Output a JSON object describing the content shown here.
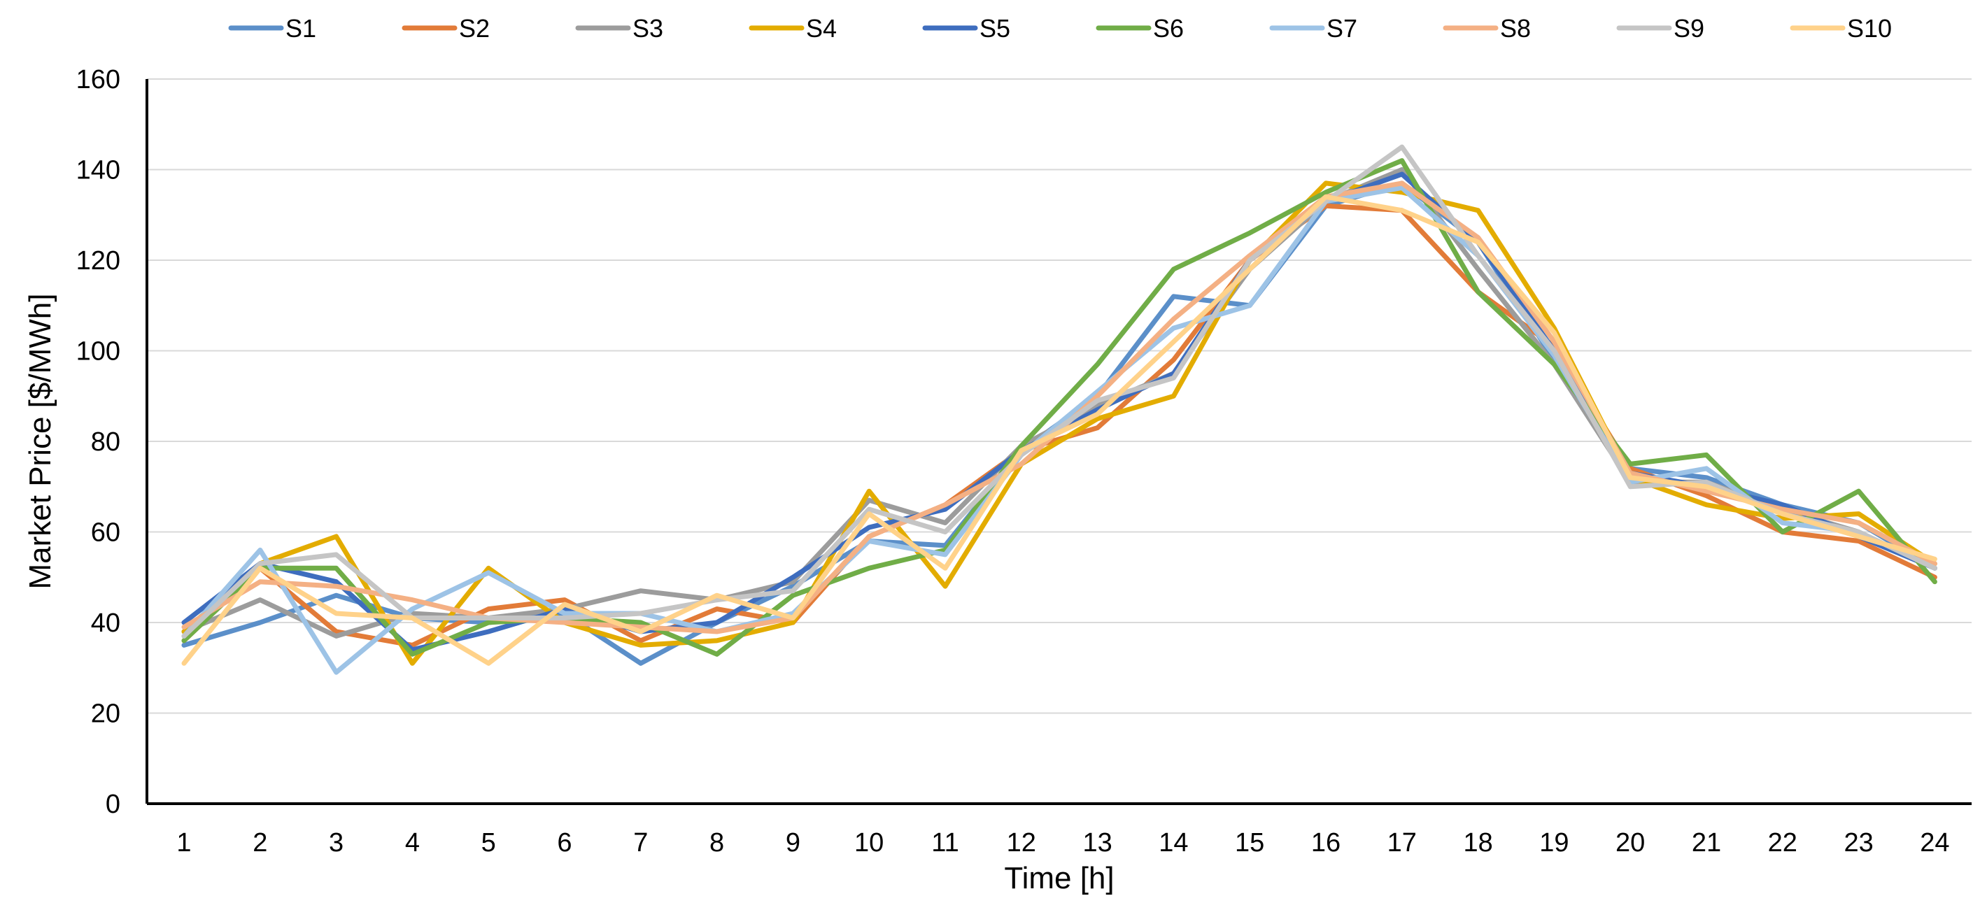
{
  "chart_data": {
    "type": "line",
    "title": "",
    "xlabel": "Time [h]",
    "ylabel": "Market Price [$/MWh]",
    "ylim": [
      0,
      160
    ],
    "yticks": [
      0,
      20,
      40,
      60,
      80,
      100,
      120,
      140,
      160
    ],
    "x": [
      "1",
      "2",
      "3",
      "4",
      "5",
      "6",
      "7",
      "8",
      "9",
      "10",
      "11",
      "12",
      "13",
      "14",
      "15",
      "16",
      "17",
      "18",
      "19",
      "20",
      "21",
      "22",
      "23",
      "24"
    ],
    "grid": "horizontal",
    "legend_position": "top",
    "series": [
      {
        "name": "S1",
        "color": "#5B8FC9",
        "values": [
          35,
          40,
          46,
          41,
          40,
          42,
          31,
          40,
          48,
          58,
          57,
          78,
          90,
          112,
          110,
          132,
          137,
          124,
          98,
          74,
          72,
          66,
          62,
          52
        ]
      },
      {
        "name": "S2",
        "color": "#E27B38",
        "values": [
          36,
          52,
          38,
          35,
          43,
          45,
          36,
          43,
          40,
          59,
          66,
          78,
          83,
          98,
          120,
          132,
          131,
          113,
          101,
          74,
          68,
          60,
          58,
          50
        ]
      },
      {
        "name": "S3",
        "color": "#9C9C9C",
        "values": [
          38,
          45,
          37,
          42,
          41,
          43,
          47,
          45,
          49,
          67,
          62,
          79,
          88,
          95,
          118,
          133,
          140,
          118,
          97,
          71,
          71,
          65,
          60,
          52
        ]
      },
      {
        "name": "S4",
        "color": "#E3AC00",
        "values": [
          38,
          53,
          59,
          31,
          52,
          40,
          35,
          36,
          40,
          69,
          48,
          75,
          85,
          90,
          120,
          137,
          135,
          131,
          105,
          72,
          66,
          63,
          64,
          53
        ]
      },
      {
        "name": "S5",
        "color": "#3E6DBE",
        "values": [
          40,
          53,
          49,
          34,
          38,
          43,
          38,
          40,
          50,
          61,
          65,
          78,
          87,
          95,
          120,
          133,
          139,
          124,
          100,
          73,
          70,
          66,
          59,
          52
        ]
      },
      {
        "name": "S6",
        "color": "#70AD47",
        "values": [
          36,
          52,
          52,
          33,
          40,
          41,
          40,
          33,
          46,
          52,
          56,
          79,
          97,
          118,
          126,
          135,
          142,
          113,
          97,
          75,
          77,
          60,
          69,
          49
        ]
      },
      {
        "name": "S7",
        "color": "#9DC3E6",
        "values": [
          37,
          56,
          29,
          43,
          51,
          42,
          42,
          38,
          42,
          58,
          55,
          77,
          91,
          105,
          110,
          133,
          136,
          121,
          99,
          71,
          74,
          62,
          60,
          52
        ]
      },
      {
        "name": "S8",
        "color": "#F4B084",
        "values": [
          39,
          49,
          48,
          45,
          41,
          40,
          39,
          38,
          41,
          59,
          66,
          75,
          90,
          107,
          121,
          134,
          137,
          125,
          102,
          73,
          69,
          65,
          62,
          53
        ]
      },
      {
        "name": "S9",
        "color": "#C5C5C5",
        "values": [
          37,
          53,
          55,
          41,
          41,
          41,
          42,
          45,
          47,
          65,
          60,
          77,
          89,
          94,
          120,
          133,
          145,
          121,
          100,
          70,
          71,
          64,
          60,
          52
        ]
      },
      {
        "name": "S10",
        "color": "#FFD28A",
        "values": [
          31,
          52,
          42,
          41,
          31,
          44,
          38,
          46,
          41,
          64,
          52,
          78,
          86,
          102,
          118,
          134,
          131,
          124,
          104,
          72,
          70,
          64,
          59,
          54
        ]
      }
    ]
  }
}
